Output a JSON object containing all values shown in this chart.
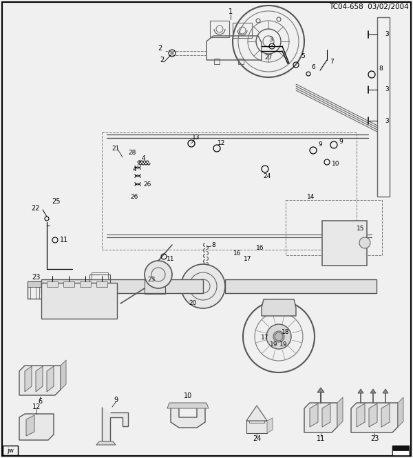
{
  "title": "TC04-658  03/02/2004",
  "bg_color": "#f0f0f0",
  "border_color": "#000000",
  "text_color": "#000000",
  "fig_width": 6.0,
  "fig_height": 6.64,
  "dpi": 100,
  "watermark_jw": "jw",
  "inner_bg": "#f5f5f5",
  "gray_line": "#888888",
  "light_gray": "#cccccc",
  "mid_gray": "#999999"
}
